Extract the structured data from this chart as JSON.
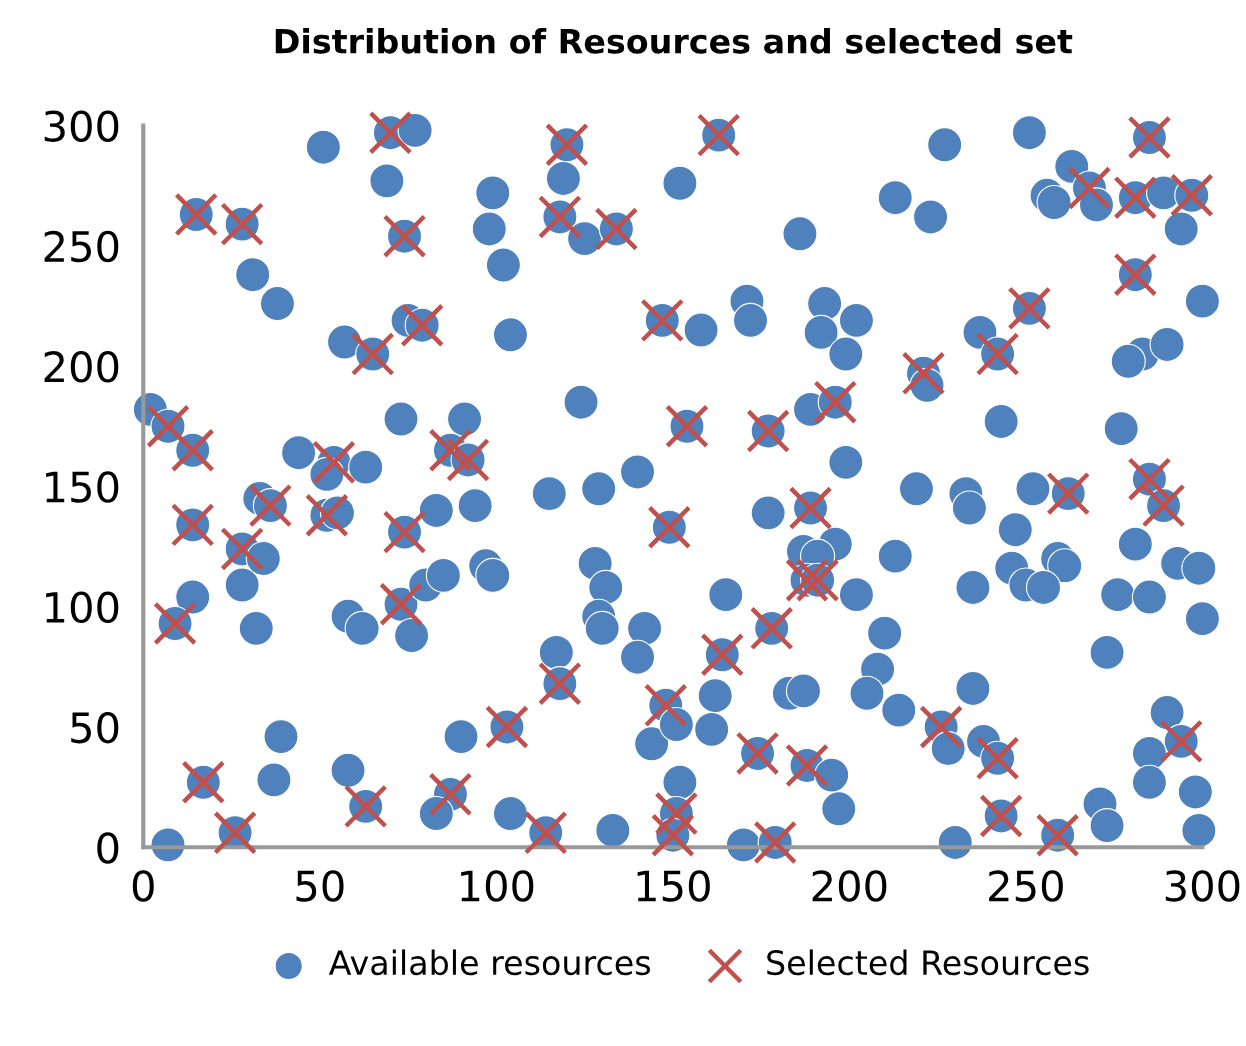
{
  "chart_data": {
    "type": "scatter",
    "title": "Distribution of Resources and selected set",
    "xlim": [
      0,
      300
    ],
    "ylim": [
      0,
      300
    ],
    "xticks": [
      0,
      50,
      100,
      150,
      200,
      250,
      300
    ],
    "yticks": [
      0,
      50,
      100,
      150,
      200,
      250,
      300
    ],
    "grid": false,
    "legend": "bottom",
    "series": [
      {
        "name": "Available resources",
        "color": "#4f81bd",
        "marker": "circle",
        "x": [
          51,
          70,
          77,
          69,
          120,
          119,
          99,
          98,
          102,
          118,
          125,
          134,
          15,
          28,
          31,
          38,
          74,
          104,
          57,
          65,
          75,
          79,
          147,
          124,
          2,
          7,
          14,
          73,
          91,
          87,
          92,
          44,
          54,
          52,
          63,
          140,
          129,
          115,
          163,
          152,
          227,
          251,
          213,
          223,
          186,
          263,
          256,
          258,
          268,
          270,
          281,
          289,
          297,
          285,
          294,
          281,
          300,
          158,
          171,
          172,
          193,
          192,
          202,
          199,
          237,
          242,
          251,
          221,
          222,
          283,
          279,
          290,
          243,
          277,
          154,
          177,
          189,
          196,
          199,
          219,
          233,
          252,
          262,
          285,
          289,
          14,
          28,
          34,
          33,
          36,
          52,
          55,
          74,
          83,
          94,
          14,
          9,
          28,
          32,
          58,
          62,
          73,
          80,
          85,
          76,
          97,
          99,
          128,
          131,
          129,
          130,
          142,
          140,
          117,
          118,
          148,
          144,
          39,
          37,
          17,
          26,
          7,
          58,
          63,
          90,
          103,
          87,
          83,
          104,
          114,
          133,
          149,
          177,
          234,
          247,
          281,
          293,
          299,
          259,
          261,
          246,
          250,
          255,
          235,
          213,
          196,
          187,
          191,
          188,
          191,
          202,
          165,
          178,
          210,
          208,
          205,
          214,
          164,
          162,
          183,
          187,
          161,
          151,
          174,
          188,
          195,
          197,
          226,
          228,
          235,
          238,
          242,
          243,
          230,
          259,
          271,
          273,
          290,
          294,
          285,
          285,
          298,
          299,
          152,
          151,
          150,
          170,
          179,
          276,
          285,
          273,
          300,
          189
        ],
        "values": [
          291,
          297,
          298,
          277,
          292,
          278,
          272,
          257,
          242,
          262,
          253,
          257,
          263,
          259,
          238,
          226,
          254,
          213,
          210,
          205,
          219,
          217,
          219,
          185,
          182,
          175,
          165,
          178,
          178,
          165,
          161,
          164,
          160,
          155,
          158,
          156,
          149,
          147,
          296,
          276,
          292,
          297,
          270,
          262,
          255,
          283,
          271,
          268,
          274,
          267,
          270,
          272,
          271,
          295,
          257,
          238,
          227,
          215,
          227,
          219,
          226,
          214,
          219,
          205,
          214,
          205,
          224,
          197,
          192,
          205,
          202,
          209,
          177,
          174,
          175,
          173,
          182,
          185,
          160,
          149,
          147,
          149,
          147,
          153,
          142,
          134,
          124,
          120,
          145,
          142,
          138,
          139,
          131,
          140,
          142,
          104,
          93,
          109,
          91,
          96,
          91,
          101,
          109,
          113,
          88,
          117,
          113,
          118,
          108,
          96,
          91,
          91,
          79,
          81,
          68,
          59,
          43,
          46,
          28,
          27,
          6,
          1,
          32,
          17,
          46,
          50,
          22,
          14,
          14,
          6,
          7,
          133,
          139,
          141,
          132,
          126,
          118,
          116,
          120,
          117,
          116,
          109,
          108,
          108,
          121,
          126,
          123,
          121,
          111,
          111,
          105,
          105,
          91,
          89,
          74,
          64,
          57,
          80,
          63,
          64,
          65,
          49,
          51,
          39,
          34,
          30,
          16,
          50,
          41,
          66,
          44,
          37,
          13,
          2,
          5,
          18,
          9,
          56,
          44,
          39,
          27,
          23,
          7,
          27,
          14,
          5,
          1,
          2,
          105,
          104,
          81,
          95,
          141
        ]
      },
      {
        "name": "Selected Resources",
        "color": "#c0504d",
        "marker": "cross",
        "x": [
          70,
          120,
          118,
          134,
          15,
          28,
          74,
          65,
          79,
          147,
          7,
          14,
          87,
          92,
          54,
          163,
          268,
          281,
          297,
          285,
          281,
          242,
          251,
          221,
          154,
          177,
          196,
          262,
          285,
          289,
          14,
          28,
          36,
          52,
          74,
          9,
          73,
          118,
          148,
          17,
          26,
          63,
          103,
          87,
          114,
          149,
          189,
          188,
          191,
          178,
          164,
          174,
          188,
          226,
          242,
          243,
          259,
          294,
          151,
          150,
          179
        ],
        "values": [
          297,
          292,
          262,
          257,
          263,
          259,
          254,
          205,
          217,
          219,
          175,
          165,
          165,
          161,
          160,
          296,
          274,
          270,
          271,
          295,
          238,
          205,
          224,
          197,
          175,
          173,
          185,
          147,
          153,
          142,
          134,
          124,
          142,
          138,
          131,
          93,
          101,
          68,
          59,
          27,
          6,
          17,
          50,
          22,
          6,
          133,
          141,
          111,
          111,
          91,
          80,
          39,
          34,
          50,
          37,
          13,
          5,
          44,
          14,
          5,
          2
        ]
      }
    ]
  }
}
